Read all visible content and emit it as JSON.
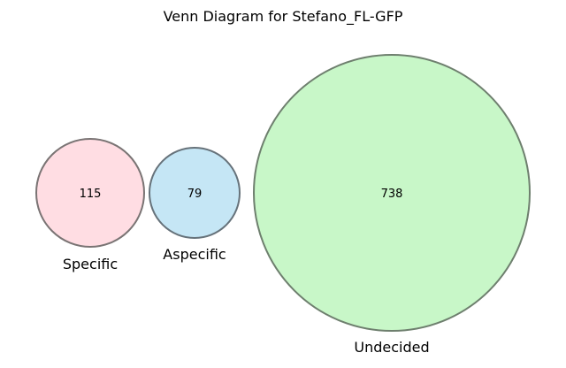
{
  "title": "Venn Diagram for Stefano_FL-GFP",
  "sets": [
    {
      "label": "Specific",
      "count": "115",
      "fill": "#ffdde3",
      "stroke": "#7a7474"
    },
    {
      "label": "Aspecific",
      "count": "79",
      "fill": "#c5e6f5",
      "stroke": "#66727a"
    },
    {
      "label": "Undecided",
      "count": "738",
      "fill": "#c8f7c8",
      "stroke": "#6e7f6e"
    }
  ]
}
